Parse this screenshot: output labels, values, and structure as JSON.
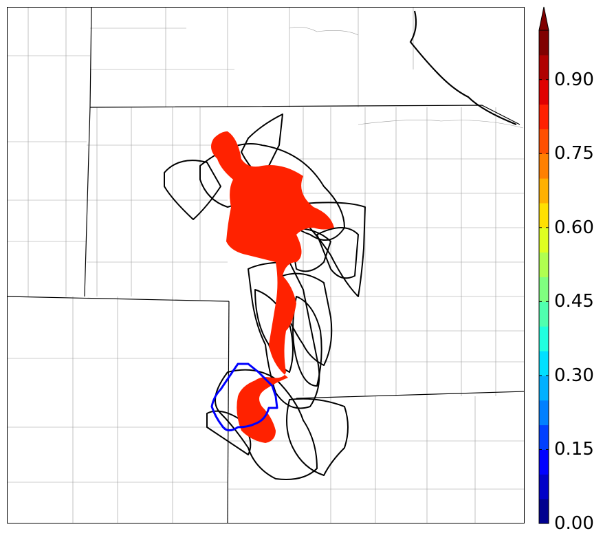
{
  "colorbar": {
    "tick_labels": [
      "0.00",
      "0.15",
      "0.30",
      "0.45",
      "0.60",
      "0.75",
      "0.90"
    ],
    "colors": [
      "#00008f",
      "#0000c8",
      "#0000ff",
      "#0040ff",
      "#0080ff",
      "#00b0ff",
      "#00e0ff",
      "#20ffdf",
      "#50ffaf",
      "#80ff80",
      "#b0ff50",
      "#dfff20",
      "#ffe000",
      "#ffb000",
      "#ff8000",
      "#ff5000",
      "#ff2000",
      "#e00000",
      "#b00000",
      "#800000"
    ],
    "extend": "max"
  },
  "map": {
    "probability_fill_color": "#ff2200",
    "observed_outline_color": "#0000ff",
    "member_outline_color": "#000000",
    "background_color": "#ffffff"
  }
}
